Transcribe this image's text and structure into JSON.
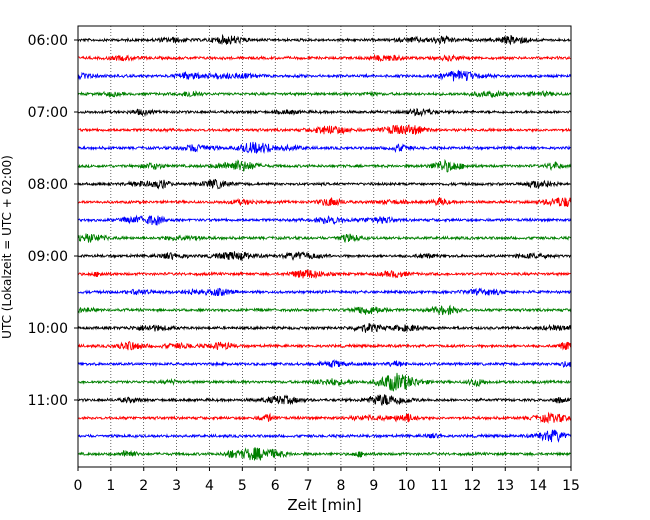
{
  "chart_data": {
    "type": "line",
    "title": "",
    "xlabel": "Zeit  [min]",
    "ylabel": "UTC (Lokalzeit = UTC + 02:00)",
    "xlim": [
      0,
      15
    ],
    "x_ticks": [
      "0",
      "1",
      "2",
      "3",
      "4",
      "5",
      "6",
      "7",
      "8",
      "9",
      "10",
      "11",
      "12",
      "13",
      "14",
      "15"
    ],
    "y_ticks": [
      "06:00",
      "07:00",
      "08:00",
      "09:00",
      "10:00",
      "11:00"
    ],
    "grid": "vertical dotted",
    "trace_interval_min": 15,
    "trace_colors": [
      "#000000",
      "#ff0000",
      "#0000ff",
      "#008000"
    ],
    "traces": [
      {
        "start": "06:00"
      },
      {
        "start": "06:15"
      },
      {
        "start": "06:30"
      },
      {
        "start": "06:45"
      },
      {
        "start": "07:00"
      },
      {
        "start": "07:15"
      },
      {
        "start": "07:30"
      },
      {
        "start": "07:45"
      },
      {
        "start": "08:00"
      },
      {
        "start": "08:15"
      },
      {
        "start": "08:30"
      },
      {
        "start": "08:45"
      },
      {
        "start": "09:00"
      },
      {
        "start": "09:15"
      },
      {
        "start": "09:30"
      },
      {
        "start": "09:45"
      },
      {
        "start": "10:00"
      },
      {
        "start": "10:15"
      },
      {
        "start": "10:30"
      },
      {
        "start": "10:45"
      },
      {
        "start": "11:00"
      },
      {
        "start": "11:15"
      },
      {
        "start": "11:30"
      },
      {
        "start": "11:45"
      }
    ]
  }
}
